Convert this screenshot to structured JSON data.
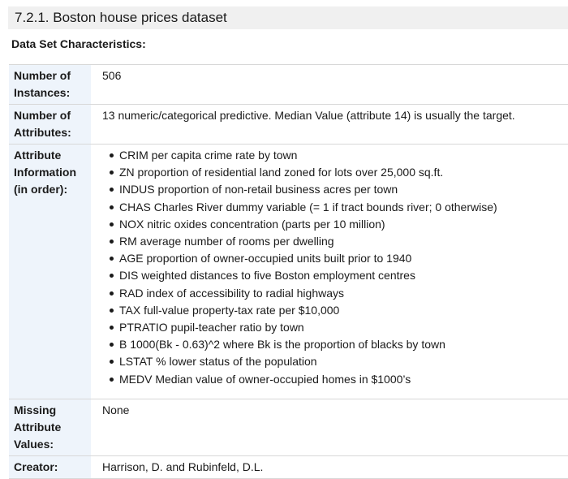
{
  "heading": "7.2.1. Boston house prices dataset",
  "subheading": "Data Set Characteristics:",
  "rows": {
    "instances": {
      "label": "Number of Instances:",
      "value": "506"
    },
    "attributes": {
      "label": "Number of Attributes:",
      "value": "13 numeric/categorical predictive. Median Value (attribute 14) is usually the target."
    },
    "attribute_info": {
      "label": "Attribute Information (in order):",
      "items": [
        "CRIM per capita crime rate by town",
        "ZN proportion of residential land zoned for lots over 25,000 sq.ft.",
        "INDUS proportion of non-retail business acres per town",
        "CHAS Charles River dummy variable (= 1 if tract bounds river; 0 otherwise)",
        "NOX nitric oxides concentration (parts per 10 million)",
        "RM average number of rooms per dwelling",
        "AGE proportion of owner-occupied units built prior to 1940",
        "DIS weighted distances to five Boston employment centres",
        "RAD index of accessibility to radial highways",
        "TAX full-value property-tax rate per $10,000",
        "PTRATIO pupil-teacher ratio by town",
        "B 1000(Bk - 0.63)^2 where Bk is the proportion of blacks by town",
        "LSTAT % lower status of the population",
        "MEDV Median value of owner-occupied homes in $1000’s"
      ]
    },
    "missing": {
      "label": "Missing Attribute Values:",
      "value": "None"
    },
    "creator": {
      "label": "Creator:",
      "value": "Harrison, D. and Rubinfeld, D.L."
    }
  }
}
